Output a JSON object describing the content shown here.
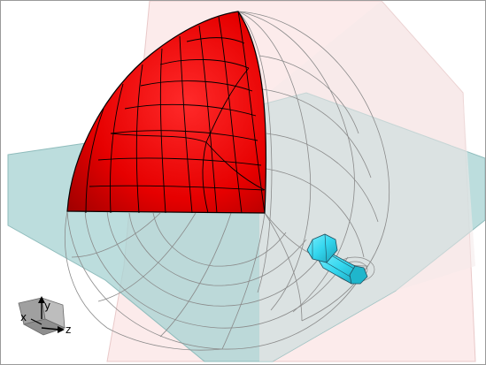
{
  "viewport": {
    "background": "#ffffff",
    "border_color": "#9a9a9a"
  },
  "planes": {
    "xz_plane_color": "#a9d4d4",
    "xy_plane_color": "#fbe6e6",
    "edge_color": "#c9a0a0"
  },
  "model": {
    "solid_fill": "#e60000",
    "solid_highlight": "#ff3b3b",
    "solid_shade": "#a00000",
    "mesh_line_color": "#000000",
    "wireframe_color": "#8a8a8a"
  },
  "bolt": {
    "fill": "#33d6ee",
    "shade": "#1a9fb5",
    "outline": "#205060"
  },
  "triad": {
    "icon": "axis-triad-icon",
    "cube_color": "#9a9a9a",
    "labels": {
      "x": "x",
      "y": "y",
      "z": "z"
    }
  }
}
